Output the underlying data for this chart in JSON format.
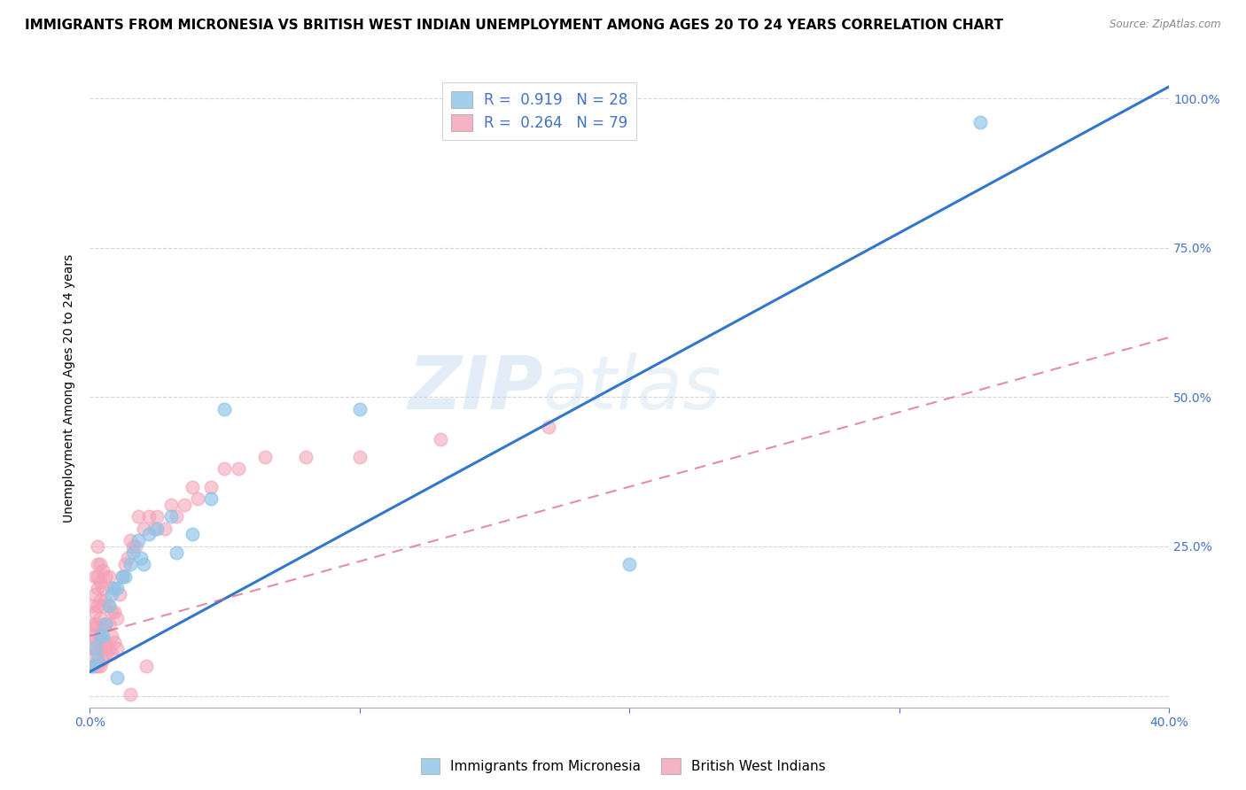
{
  "title": "IMMIGRANTS FROM MICRONESIA VS BRITISH WEST INDIAN UNEMPLOYMENT AMONG AGES 20 TO 24 YEARS CORRELATION CHART",
  "source": "Source: ZipAtlas.com",
  "xlabel_label": "Immigrants from Micronesia",
  "xlabel_label2": "British West Indians",
  "ylabel": "Unemployment Among Ages 20 to 24 years",
  "xlim": [
    0.0,
    0.4
  ],
  "ylim": [
    -0.02,
    1.05
  ],
  "x_ticks": [
    0.0,
    0.1,
    0.2,
    0.3,
    0.4
  ],
  "x_tick_labels": [
    "0.0%",
    "",
    "",
    "",
    "40.0%"
  ],
  "y_ticks": [
    0.0,
    0.25,
    0.5,
    0.75,
    1.0
  ],
  "y_tick_labels": [
    "",
    "25.0%",
    "50.0%",
    "75.0%",
    "100.0%"
  ],
  "blue_R": 0.919,
  "blue_N": 28,
  "pink_R": 0.264,
  "pink_N": 79,
  "blue_color": "#8ec4e8",
  "pink_color": "#f4a0b5",
  "blue_line_color": "#3377cc",
  "pink_line_color": "#dd6688",
  "watermark": "ZIPatlas",
  "blue_scatter_x": [
    0.001,
    0.002,
    0.003,
    0.004,
    0.005,
    0.006,
    0.007,
    0.008,
    0.009,
    0.01,
    0.012,
    0.013,
    0.015,
    0.016,
    0.018,
    0.019,
    0.02,
    0.022,
    0.025,
    0.03,
    0.032,
    0.038,
    0.01,
    0.045,
    0.05,
    0.1,
    0.2,
    0.33
  ],
  "blue_scatter_y": [
    0.05,
    0.08,
    0.06,
    0.1,
    0.1,
    0.12,
    0.15,
    0.17,
    0.18,
    0.18,
    0.2,
    0.2,
    0.22,
    0.24,
    0.26,
    0.23,
    0.22,
    0.27,
    0.28,
    0.3,
    0.24,
    0.27,
    0.03,
    0.33,
    0.48,
    0.48,
    0.22,
    0.96
  ],
  "pink_scatter_x": [
    0.001,
    0.001,
    0.001,
    0.001,
    0.001,
    0.002,
    0.002,
    0.002,
    0.002,
    0.002,
    0.002,
    0.002,
    0.003,
    0.003,
    0.003,
    0.003,
    0.003,
    0.003,
    0.003,
    0.003,
    0.003,
    0.004,
    0.004,
    0.004,
    0.004,
    0.004,
    0.004,
    0.004,
    0.005,
    0.005,
    0.005,
    0.005,
    0.005,
    0.005,
    0.006,
    0.006,
    0.006,
    0.006,
    0.006,
    0.007,
    0.007,
    0.007,
    0.007,
    0.008,
    0.008,
    0.008,
    0.008,
    0.009,
    0.009,
    0.01,
    0.01,
    0.011,
    0.012,
    0.013,
    0.014,
    0.015,
    0.016,
    0.017,
    0.018,
    0.02,
    0.022,
    0.024,
    0.025,
    0.028,
    0.03,
    0.032,
    0.035,
    0.038,
    0.04,
    0.045,
    0.05,
    0.055,
    0.065,
    0.08,
    0.1,
    0.13,
    0.17,
    0.021,
    0.015
  ],
  "pink_scatter_y": [
    0.05,
    0.08,
    0.1,
    0.12,
    0.15,
    0.05,
    0.07,
    0.1,
    0.12,
    0.14,
    0.17,
    0.2,
    0.05,
    0.07,
    0.09,
    0.12,
    0.15,
    0.18,
    0.2,
    0.22,
    0.25,
    0.05,
    0.08,
    0.1,
    0.13,
    0.16,
    0.19,
    0.22,
    0.06,
    0.09,
    0.12,
    0.15,
    0.18,
    0.21,
    0.07,
    0.09,
    0.12,
    0.16,
    0.2,
    0.08,
    0.12,
    0.15,
    0.2,
    0.07,
    0.1,
    0.14,
    0.18,
    0.09,
    0.14,
    0.08,
    0.13,
    0.17,
    0.2,
    0.22,
    0.23,
    0.26,
    0.25,
    0.25,
    0.3,
    0.28,
    0.3,
    0.28,
    0.3,
    0.28,
    0.32,
    0.3,
    0.32,
    0.35,
    0.33,
    0.35,
    0.38,
    0.38,
    0.4,
    0.4,
    0.4,
    0.43,
    0.45,
    0.05,
    0.003
  ],
  "grid_color": "#cccccc",
  "background_color": "#ffffff",
  "axis_label_color": "#4472c4",
  "title_fontsize": 11,
  "axis_fontsize": 10,
  "legend_fontsize": 12,
  "blue_line_x0": 0.0,
  "blue_line_y0": 0.04,
  "blue_line_x1": 0.4,
  "blue_line_y1": 1.02,
  "pink_line_x0": 0.0,
  "pink_line_y0": 0.1,
  "pink_line_x1": 0.4,
  "pink_line_y1": 0.6
}
